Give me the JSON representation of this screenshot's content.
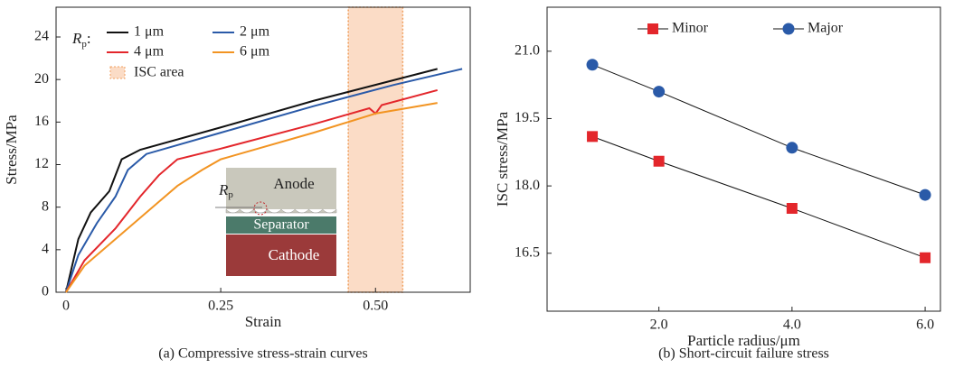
{
  "chart_data": [
    {
      "type": "line",
      "caption": "(a) Compressive stress-strain curves",
      "x_label": "Strain",
      "y_label": "Stress/MPa",
      "xlim": [
        -0.016,
        0.653
      ],
      "ylim": [
        0,
        26.8
      ],
      "xticks": [
        0,
        0.25,
        {
          "value": 0.5,
          "label": "0.50"
        }
      ],
      "yticks": [
        0,
        4,
        8,
        12,
        16,
        20,
        24
      ],
      "legend_title": {
        "main": "R",
        "sub": "p",
        "suffix": ":"
      },
      "legend": "upper left",
      "series": [
        {
          "name": "1 μm",
          "color": "#111111",
          "x": [
            0,
            0.02,
            0.04,
            0.07,
            0.09,
            0.12,
            0.25,
            0.4,
            0.6
          ],
          "values": [
            0,
            5,
            7.5,
            9.5,
            12.5,
            13.4,
            15.5,
            18,
            21
          ]
        },
        {
          "name": "2 μm",
          "color": "#2a5aa8",
          "x": [
            0,
            0.02,
            0.05,
            0.08,
            0.1,
            0.13,
            0.25,
            0.4,
            0.53,
            0.64
          ],
          "values": [
            0,
            3.5,
            6.5,
            9,
            11.5,
            13,
            15,
            17.5,
            19.5,
            21
          ]
        },
        {
          "name": "4 μm",
          "color": "#e3262b",
          "x": [
            0,
            0.03,
            0.08,
            0.12,
            0.15,
            0.18,
            0.25,
            0.4,
            0.49,
            0.5,
            0.51,
            0.6
          ],
          "values": [
            0,
            3,
            6,
            9,
            11,
            12.5,
            13.5,
            15.8,
            17.3,
            16.8,
            17.6,
            19
          ]
        },
        {
          "name": "6 μm",
          "color": "#f29422",
          "x": [
            0,
            0.03,
            0.1,
            0.15,
            0.18,
            0.22,
            0.25,
            0.4,
            0.5,
            0.6
          ],
          "values": [
            0,
            2.5,
            6,
            8.5,
            10,
            11.5,
            12.5,
            15,
            16.8,
            17.8
          ]
        }
      ],
      "shade": {
        "name": "ISC area",
        "range": [
          0.456,
          0.544
        ],
        "color": "#fbdcc6",
        "edge_color": "#f0a060"
      },
      "inset": {
        "anode": "Anode",
        "separator": "Separator",
        "cathode": "Cathode",
        "r": "R",
        "r_sub": "p"
      }
    },
    {
      "type": "line",
      "caption": "(b) Short-circuit failure stress",
      "x_label": "Particle radius/μm",
      "y_label": "ISC stress/MPa",
      "xlim": [
        0.32,
        6.23
      ],
      "ylim": [
        15.21,
        21.98
      ],
      "xticks": [
        {
          "value": 2,
          "label": "2.0"
        },
        {
          "value": 4,
          "label": "4.0"
        },
        {
          "value": 6,
          "label": "6.0"
        }
      ],
      "yticks": [
        16.5,
        {
          "value": 18,
          "label": "18.0"
        },
        19.5,
        {
          "value": 21,
          "label": "21.0"
        }
      ],
      "legend": "upper center",
      "x": [
        1,
        2,
        4,
        6
      ],
      "series": [
        {
          "name": "Minor",
          "color": "#e3262b",
          "marker": "square",
          "values": [
            19.1,
            18.55,
            17.5,
            16.4
          ]
        },
        {
          "name": "Major",
          "color": "#2a5aa8",
          "marker": "circle",
          "values": [
            20.7,
            20.1,
            18.85,
            17.8
          ]
        }
      ]
    }
  ]
}
